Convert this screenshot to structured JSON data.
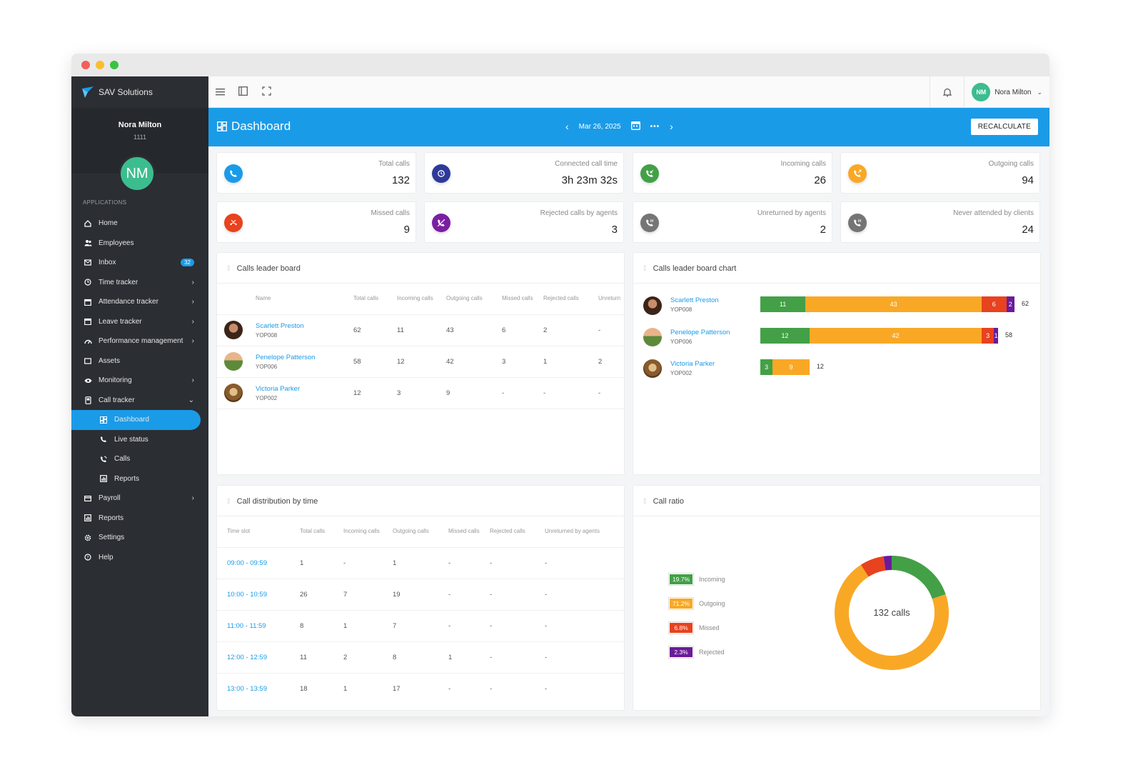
{
  "brand": "SAV Solutions",
  "profile": {
    "name": "Nora Milton",
    "id": "1111",
    "initials": "NM"
  },
  "applications_label": "APPLICATIONS",
  "nav": [
    {
      "label": "Home"
    },
    {
      "label": "Employees"
    },
    {
      "label": "Inbox",
      "badge": "32"
    },
    {
      "label": "Time tracker"
    },
    {
      "label": "Attendance tracker"
    },
    {
      "label": "Leave tracker"
    },
    {
      "label": "Performance management"
    },
    {
      "label": "Assets"
    },
    {
      "label": "Monitoring"
    },
    {
      "label": "Call tracker"
    },
    {
      "label": "Dashboard"
    },
    {
      "label": "Live status"
    },
    {
      "label": "Calls"
    },
    {
      "label": "Reports"
    },
    {
      "label": "Payroll"
    },
    {
      "label": "Reports"
    },
    {
      "label": "Settings"
    },
    {
      "label": "Help"
    }
  ],
  "topbar": {
    "user_name": "Nora Milton",
    "user_initials": "NM"
  },
  "header": {
    "title": "Dashboard",
    "date": "Mar 26, 2025",
    "recalculate": "RECALCULATE"
  },
  "stats": [
    {
      "label": "Total calls",
      "value": "132",
      "color": "#1a9be8"
    },
    {
      "label": "Connected call time",
      "value": "3h 23m 32s",
      "color": "#2e3a9a"
    },
    {
      "label": "Incoming calls",
      "value": "26",
      "color": "#43a047"
    },
    {
      "label": "Outgoing calls",
      "value": "94",
      "color": "#f9a825"
    },
    {
      "label": "Missed calls",
      "value": "9",
      "color": "#e8421e"
    },
    {
      "label": "Rejected calls by agents",
      "value": "3",
      "color": "#7b1fa2"
    },
    {
      "label": "Unreturned by agents",
      "value": "2",
      "color": "#757575"
    },
    {
      "label": "Never attended by clients",
      "value": "24",
      "color": "#757575"
    }
  ],
  "leaderboard": {
    "title": "Calls leader board",
    "columns": [
      "Name",
      "Total calls",
      "Incoming calls",
      "Outgoing calls",
      "Missed calls",
      "Rejected calls",
      "Unreturn"
    ],
    "rows": [
      {
        "name": "Scarlett Preston",
        "id": "YOP008",
        "total": "62",
        "incoming": "11",
        "outgoing": "43",
        "missed": "6",
        "rejected": "2",
        "unreturned": "-"
      },
      {
        "name": "Penelope Patterson",
        "id": "YOP006",
        "total": "58",
        "incoming": "12",
        "outgoing": "42",
        "missed": "3",
        "rejected": "1",
        "unreturned": "2"
      },
      {
        "name": "Victoria Parker",
        "id": "YOP002",
        "total": "12",
        "incoming": "3",
        "outgoing": "9",
        "missed": "-",
        "rejected": "-",
        "unreturned": "-"
      }
    ]
  },
  "leaderchart": {
    "title": "Calls leader board chart",
    "rows": [
      {
        "name": "Scarlett Preston",
        "id": "YOP008",
        "segments": [
          11,
          43,
          6,
          2
        ],
        "total": "62"
      },
      {
        "name": "Penelope Patterson",
        "id": "YOP006",
        "segments": [
          12,
          42,
          3,
          1
        ],
        "total": "58"
      },
      {
        "name": "Victoria Parker",
        "id": "YOP002",
        "segments": [
          3,
          9,
          0,
          0
        ],
        "total": "12"
      }
    ],
    "colors": [
      "#43a047",
      "#f9a825",
      "#e8421e",
      "#6a1b9a"
    ]
  },
  "distribution": {
    "title": "Call distribution by time",
    "columns": [
      "Time slot",
      "Total calls",
      "Incoming calls",
      "Outgoing calls",
      "Missed calls",
      "Rejected calls",
      "Unreturned by agents"
    ],
    "rows": [
      {
        "slot": "09:00 - 09:59",
        "total": "1",
        "incoming": "-",
        "outgoing": "1",
        "missed": "-",
        "rejected": "-",
        "unreturned": "-"
      },
      {
        "slot": "10:00 - 10:59",
        "total": "26",
        "incoming": "7",
        "outgoing": "19",
        "missed": "-",
        "rejected": "-",
        "unreturned": "-"
      },
      {
        "slot": "11:00 - 11:59",
        "total": "8",
        "incoming": "1",
        "outgoing": "7",
        "missed": "-",
        "rejected": "-",
        "unreturned": "-"
      },
      {
        "slot": "12:00 - 12:59",
        "total": "11",
        "incoming": "2",
        "outgoing": "8",
        "missed": "1",
        "rejected": "-",
        "unreturned": "-"
      },
      {
        "slot": "13:00 - 13:59",
        "total": "18",
        "incoming": "1",
        "outgoing": "17",
        "missed": "-",
        "rejected": "-",
        "unreturned": "-"
      }
    ]
  },
  "ratio": {
    "title": "Call ratio",
    "center_label": "132 calls",
    "legend": [
      {
        "pct": "19.7%",
        "label": "Incoming",
        "color": "#43a047"
      },
      {
        "pct": "71.2%",
        "label": "Outgoing",
        "color": "#f9a825"
      },
      {
        "pct": "6.8%",
        "label": "Missed",
        "color": "#e8421e"
      },
      {
        "pct": "2.3%",
        "label": "Rejected",
        "color": "#6a1b9a"
      }
    ]
  },
  "chart_data": {
    "type": "pie",
    "title": "Call ratio",
    "categories": [
      "Incoming",
      "Outgoing",
      "Missed",
      "Rejected"
    ],
    "values": [
      19.7,
      71.2,
      6.8,
      2.3
    ],
    "center_label": "132 calls"
  }
}
